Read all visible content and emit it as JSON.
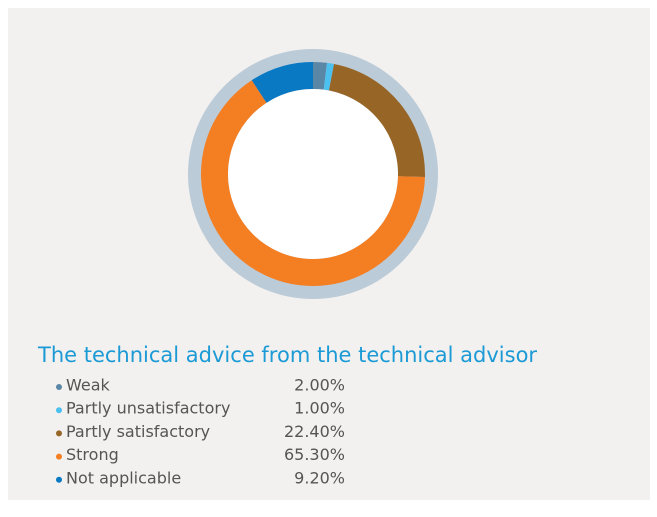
{
  "chart_data": {
    "type": "donut",
    "title": "The technical advice from the technical advisor",
    "categories": [
      "Weak",
      "Partly unsatisfactory",
      "Partly satisfactory",
      "Strong",
      "Not applicable"
    ],
    "values": [
      2.0,
      1.0,
      22.4,
      65.3,
      9.2
    ],
    "value_labels": [
      "2.00%",
      "1.00%",
      "22.40%",
      "65.30%",
      "9.20%"
    ],
    "colors": [
      "#5a87a6",
      "#4cc0ee",
      "#976627",
      "#f47e22",
      "#0a79c4"
    ]
  }
}
